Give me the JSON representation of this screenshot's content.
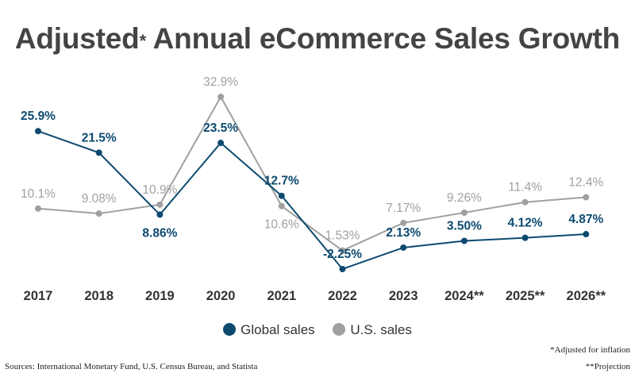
{
  "title": {
    "main": "Adjusted",
    "star": "*",
    "rest": " Annual eCommerce Sales Growth"
  },
  "colors": {
    "global": "#0d4a70",
    "us": "#a0a0a0",
    "axis_text": "#333333"
  },
  "chart_data": {
    "type": "line",
    "title": "Adjusted* Annual eCommerce Sales Growth",
    "categories": [
      "2017",
      "2018",
      "2019",
      "2020",
      "2021",
      "2022",
      "2023",
      "2024**",
      "2025**",
      "2026**"
    ],
    "series": [
      {
        "name": "Global sales",
        "values": [
          25.9,
          21.5,
          8.86,
          23.5,
          12.7,
          -2.25,
          2.13,
          3.5,
          4.12,
          4.87
        ],
        "labels": [
          "25.9%",
          "21.5%",
          "8.86%",
          "23.5%",
          "12.7%",
          "-2.25%",
          "2.13%",
          "3.50%",
          "4.12%",
          "4.87%"
        ]
      },
      {
        "name": "U.S. sales",
        "values": [
          10.1,
          9.08,
          10.9,
          32.9,
          10.6,
          1.53,
          7.17,
          9.26,
          11.4,
          12.4
        ],
        "labels": [
          "10.1%",
          "9.08%",
          "10.9%",
          "32.9%",
          "10.6%",
          "1.53%",
          "7.17%",
          "9.26%",
          "11.4%",
          "12.4%"
        ]
      }
    ],
    "xlabel": "",
    "ylabel": "",
    "ylim": [
      -2.25,
      32.9
    ],
    "grid": false,
    "legend": "bottom-center"
  },
  "legend": {
    "global_label": "Global sales",
    "us_label": "U.S. sales"
  },
  "footer": {
    "sources": "Sources: International Monetary Fund, U.S. Census Bureau, and Statista",
    "note_adjusted": "*Adjusted for inflation",
    "note_projection": "**Projection"
  }
}
